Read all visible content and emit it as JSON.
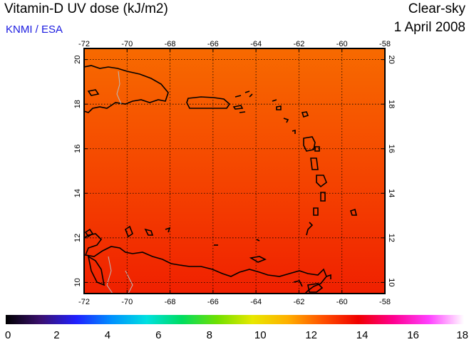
{
  "header": {
    "title": "Vitamin-D UV dose (kJ/m2)",
    "source": "KNMI / ESA",
    "condition": "Clear-sky",
    "date": "1 April 2008"
  },
  "map": {
    "lon_range": [
      -72,
      -58
    ],
    "lat_range": [
      9.5,
      20.5
    ],
    "lon_ticks": [
      "-72",
      "-70",
      "-68",
      "-66",
      "-64",
      "-62",
      "-60",
      "-58"
    ],
    "lat_ticks": [
      "10",
      "12",
      "14",
      "16",
      "18",
      "20"
    ],
    "gridlines": "dotted",
    "field_colors": {
      "north": "#f76a00",
      "mid": "#f54a00",
      "south": "#f02000"
    }
  },
  "colorbar": {
    "min": 0,
    "max": 18,
    "tick_labels": [
      "0",
      "2",
      "4",
      "6",
      "8",
      "10",
      "12",
      "14",
      "16",
      "18"
    ],
    "stops": [
      "#000000",
      "#3b1070",
      "#2020ff",
      "#0090ff",
      "#00e0e0",
      "#00dd60",
      "#70e000",
      "#e8e800",
      "#ffb000",
      "#ff5000",
      "#f00000",
      "#ff0090",
      "#ff40ff",
      "#ffffff"
    ]
  }
}
